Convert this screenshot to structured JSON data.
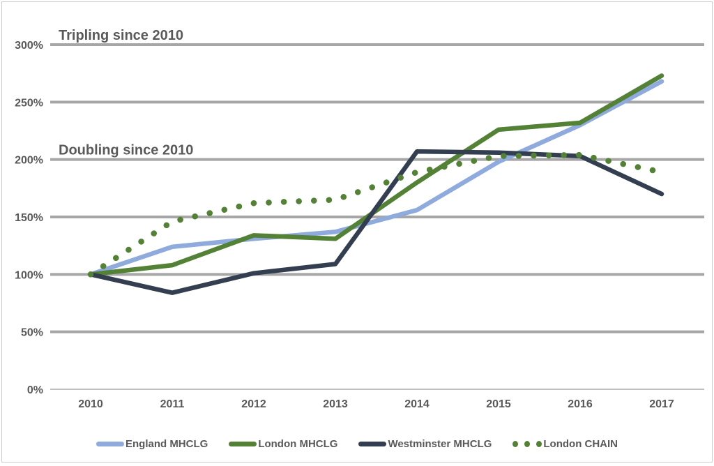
{
  "colors": {
    "gridline": "#a6a6a6",
    "zero_line": "#bfbfbf",
    "text": "#595959",
    "border": "#cdcdcd",
    "england": "#8faadc",
    "london": "#538135",
    "westminster": "#333f50",
    "chain": "#538135"
  },
  "chart_data": {
    "type": "line",
    "title": "",
    "xlabel": "",
    "ylabel": "",
    "categories": [
      "2010",
      "2011",
      "2012",
      "2013",
      "2014",
      "2015",
      "2016",
      "2017"
    ],
    "series": [
      {
        "name": "England MHCLG",
        "color": "#8faadc",
        "style": "solid",
        "values": [
          100,
          124,
          131,
          137,
          156,
          198,
          230,
          268
        ]
      },
      {
        "name": "London MHCLG",
        "color": "#538135",
        "style": "solid",
        "values": [
          100,
          108,
          134,
          131,
          180,
          226,
          232,
          273
        ]
      },
      {
        "name": "Westminster MHCLG",
        "color": "#333f50",
        "style": "solid",
        "values": [
          100,
          84,
          101,
          109,
          207,
          206,
          203,
          170
        ]
      },
      {
        "name": "London CHAIN",
        "color": "#538135",
        "style": "dotted",
        "values": [
          100,
          146,
          162,
          165,
          189,
          203,
          204,
          189
        ]
      }
    ],
    "ylim": [
      0,
      300
    ],
    "yticks": [
      {
        "value": 0,
        "label": "0%"
      },
      {
        "value": 50,
        "label": "50%"
      },
      {
        "value": 100,
        "label": "100%"
      },
      {
        "value": 150,
        "label": "150%"
      },
      {
        "value": 200,
        "label": "200%"
      },
      {
        "value": 250,
        "label": "250%"
      },
      {
        "value": 300,
        "label": "300%"
      }
    ],
    "annotations": [
      {
        "text": "Tripling since 2010",
        "at": 300
      },
      {
        "text": "Doubling since 2010",
        "at": 200
      }
    ],
    "grid": true,
    "legend_position": "bottom"
  }
}
